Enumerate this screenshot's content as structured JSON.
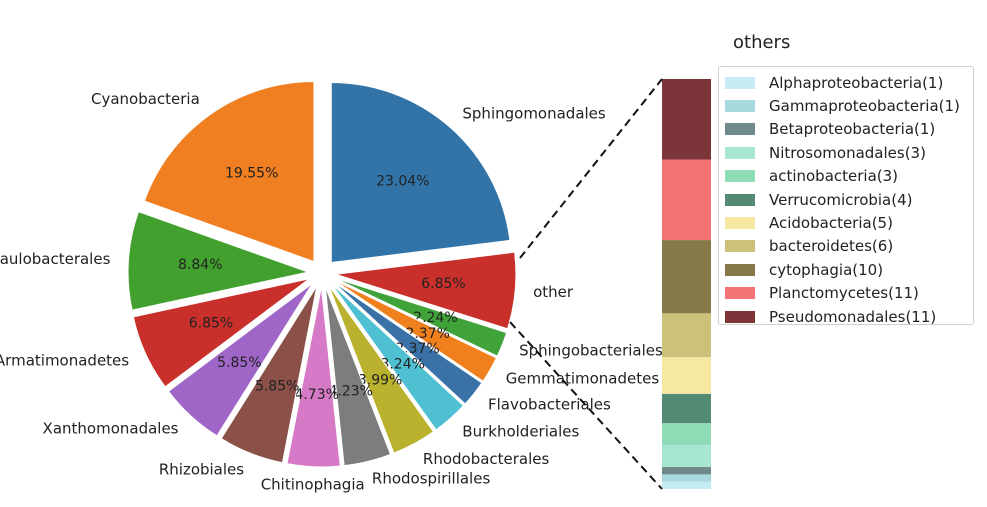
{
  "chart_data": [
    {
      "type": "pie",
      "title": "",
      "slices": [
        {
          "label": "Sphingomonadales",
          "value": 23.04,
          "pct_label": "23.04%",
          "color": "#3274a8"
        },
        {
          "label": "other",
          "value": 6.85,
          "pct_label": "6.85%",
          "color": "#c9302c"
        },
        {
          "label": "Sphingobacteriales",
          "value": 2.24,
          "pct_label": "2.24%",
          "color": "#3fa33a"
        },
        {
          "label": "Gemmatimonadetes",
          "value": 2.37,
          "pct_label": "2.37%",
          "color": "#f07f1e"
        },
        {
          "label": "Flavobacteriales",
          "value": 2.37,
          "pct_label": "2.37%",
          "color": "#3a72a8"
        },
        {
          "label": "Burkholderiales",
          "value": 3.24,
          "pct_label": "3.24%",
          "color": "#4fc0d2"
        },
        {
          "label": "Rhodobacterales",
          "value": 3.99,
          "pct_label": "3.99%",
          "color": "#bab22e"
        },
        {
          "label": "Rhodospirillales",
          "value": 4.23,
          "pct_label": "4.23%",
          "color": "#7d7d7d"
        },
        {
          "label": "Chitinophagia",
          "value": 4.73,
          "pct_label": "4.73%",
          "color": "#d679c6"
        },
        {
          "label": "Rhizobiales",
          "value": 5.85,
          "pct_label": "5.85%",
          "color": "#8b5047"
        },
        {
          "label": "Xanthomonadales",
          "value": 5.85,
          "pct_label": "5.85%",
          "color": "#9f66c8"
        },
        {
          "label": "Armatimonadetes",
          "value": 6.85,
          "pct_label": "6.85%",
          "color": "#c9302c"
        },
        {
          "label": "Caulobacterales",
          "value": 8.84,
          "pct_label": "8.84%",
          "color": "#42a02f"
        },
        {
          "label": "Cyanobacteria",
          "value": 19.55,
          "pct_label": "19.55%",
          "color": "#f07f22"
        }
      ]
    },
    {
      "type": "bar",
      "title": "others",
      "stacked": true,
      "legend_placement": "right",
      "segments": [
        {
          "label": "Alphaproteobacteria(1)",
          "value": 1,
          "color": "#c5ecf2"
        },
        {
          "label": "Gammaproteobacteria(1)",
          "value": 1,
          "color": "#a8d9dc"
        },
        {
          "label": "Betaproteobacteria(1)",
          "value": 1,
          "color": "#6f8a8a"
        },
        {
          "label": "Nitrosomonadales(3)",
          "value": 3,
          "color": "#a7e6d2"
        },
        {
          "label": "actinobacteria(3)",
          "value": 3,
          "color": "#8ddcb6"
        },
        {
          "label": "Verrucomicrobia(4)",
          "value": 4,
          "color": "#528a72"
        },
        {
          "label": "Acidobacteria(5)",
          "value": 5,
          "color": "#f6e8a2"
        },
        {
          "label": "bacteroidetes(6)",
          "value": 6,
          "color": "#cbc17b"
        },
        {
          "label": "cytophagia(10)",
          "value": 10,
          "color": "#877a4a"
        },
        {
          "label": "Planctomycetes(11)",
          "value": 11,
          "color": "#f47272"
        },
        {
          "label": "Pseudomonadales(11)",
          "value": 11,
          "color": "#7c3538"
        }
      ]
    }
  ]
}
